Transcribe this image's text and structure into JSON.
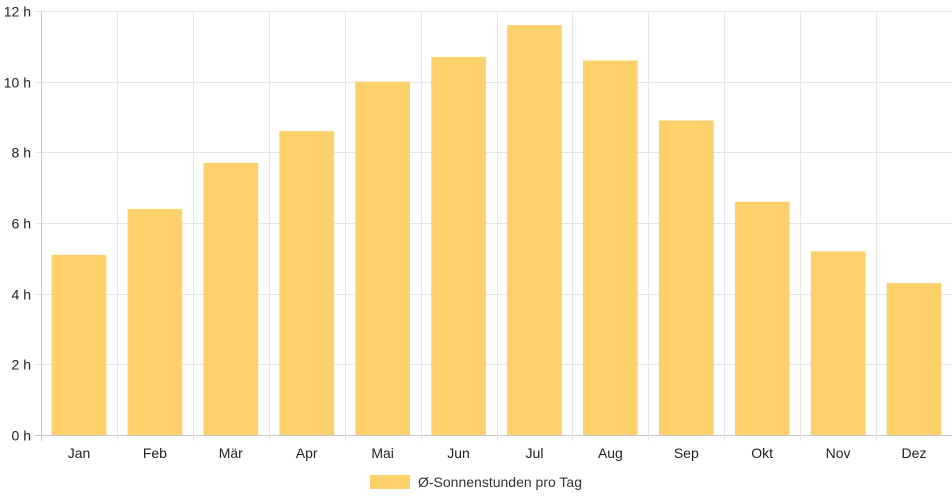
{
  "chart_data": {
    "type": "bar",
    "categories": [
      "Jan",
      "Feb",
      "Mär",
      "Apr",
      "Mai",
      "Jun",
      "Jul",
      "Aug",
      "Sep",
      "Okt",
      "Nov",
      "Dez"
    ],
    "series": [
      {
        "name": "Ø-Sonnenstunden pro Tag",
        "values": [
          5.1,
          6.4,
          7.7,
          8.6,
          10.0,
          10.7,
          11.6,
          10.6,
          8.9,
          6.6,
          5.2,
          4.3
        ]
      }
    ],
    "y_ticks": [
      "0 h",
      "2 h",
      "4 h",
      "6 h",
      "8 h",
      "10 h",
      "12 h"
    ],
    "ylim": [
      0,
      12
    ],
    "grid": true,
    "legend_position": "bottom-center",
    "colors": {
      "bar": "#fdd06a",
      "grid": "#e6e6e6",
      "axis": "#c8c8c8"
    }
  }
}
